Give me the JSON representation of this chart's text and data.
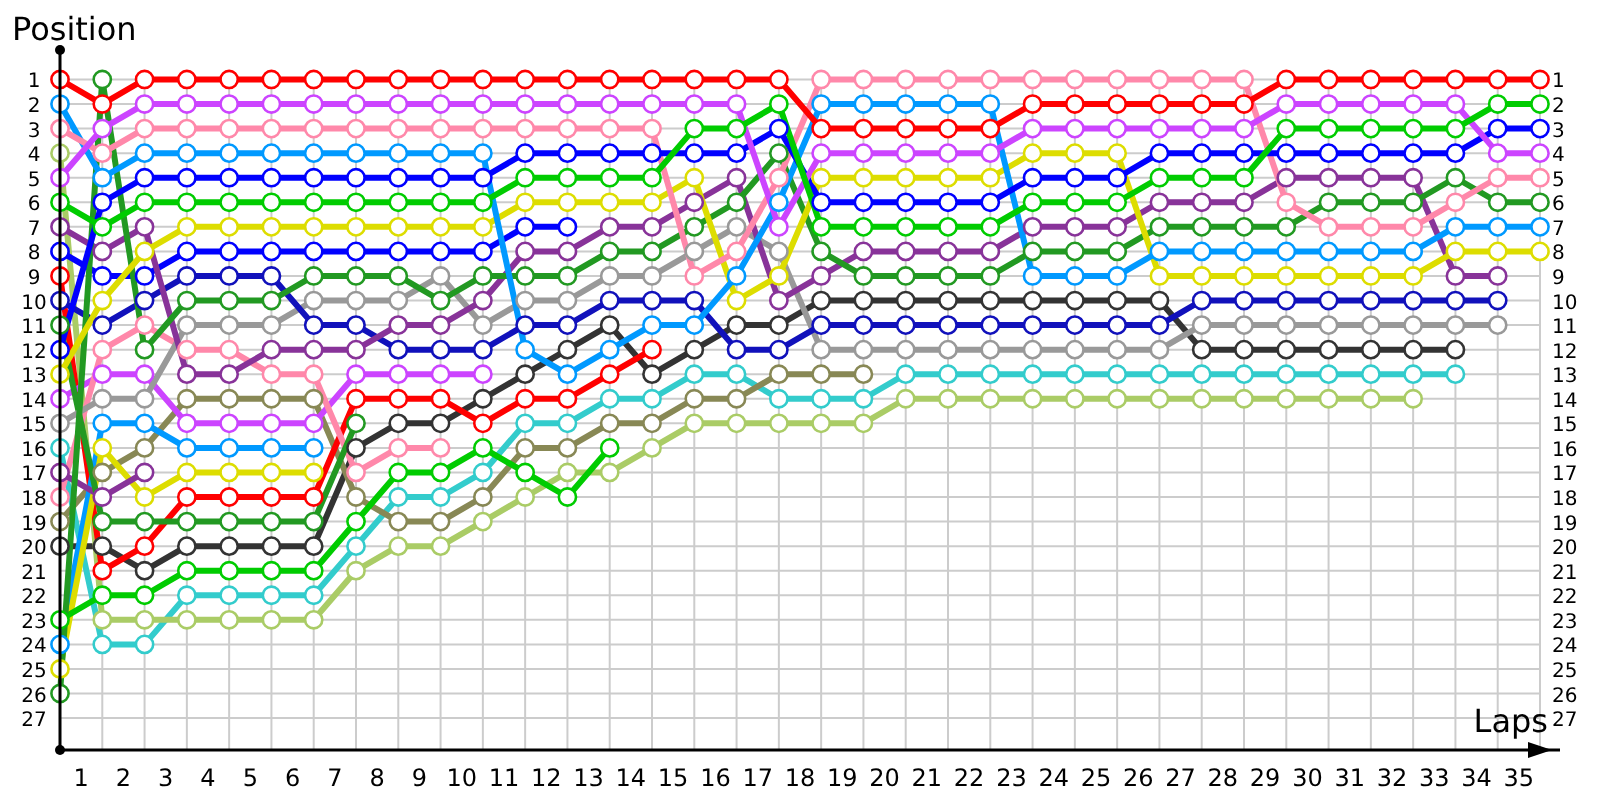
{
  "chart_data": {
    "type": "line",
    "ylabel": "Position",
    "xlabel": "Laps",
    "marker": "circle",
    "line_style": "solid",
    "grid": true,
    "x": [
      0,
      1,
      2,
      3,
      4,
      5,
      6,
      7,
      8,
      9,
      10,
      11,
      12,
      13,
      14,
      15,
      16,
      17,
      18,
      19,
      20,
      21,
      22,
      23,
      24,
      25,
      26,
      27,
      28,
      29,
      30,
      31,
      32,
      33,
      34,
      35
    ],
    "xlim": [
      0,
      35
    ],
    "xticks": [
      {
        "value": 0,
        "label": null
      },
      {
        "value": 1,
        "label": null
      },
      {
        "value": 2,
        "label": null
      },
      {
        "value": 3,
        "label": null
      },
      {
        "value": 4,
        "label": null
      },
      {
        "value": 5,
        "label": null
      },
      {
        "value": 6,
        "label": null
      },
      {
        "value": 7,
        "label": null
      },
      {
        "value": 8,
        "label": null
      },
      {
        "value": 9,
        "label": null
      },
      {
        "value": 10,
        "label": null
      },
      {
        "value": 11,
        "label": null
      },
      {
        "value": 12,
        "label": null
      },
      {
        "value": 13,
        "label": null
      },
      {
        "value": 14,
        "label": null
      },
      {
        "value": 15,
        "label": null
      },
      {
        "value": 16,
        "label": null
      },
      {
        "value": 17,
        "label": null
      },
      {
        "value": 18,
        "label": null
      },
      {
        "value": 19,
        "label": null
      },
      {
        "value": 20,
        "label": null
      },
      {
        "value": 21,
        "label": null
      },
      {
        "value": 22,
        "label": null
      },
      {
        "value": 23,
        "label": null
      },
      {
        "value": 24,
        "label": null
      },
      {
        "value": 25,
        "label": null
      },
      {
        "value": 26,
        "label": null
      },
      {
        "value": 27,
        "label": null
      },
      {
        "value": 28,
        "label": null
      },
      {
        "value": 29,
        "label": null
      },
      {
        "value": 30,
        "label": null
      },
      {
        "value": 31,
        "label": null
      },
      {
        "value": 32,
        "label": null
      },
      {
        "value": 33,
        "label": null
      },
      {
        "value": 34,
        "label": null
      },
      {
        "value": 35,
        "label": null
      },
      {
        "value": 0.5,
        "label": "1"
      },
      {
        "value": 1.5,
        "label": "2"
      },
      {
        "value": 2.5,
        "label": "3"
      },
      {
        "value": 3.5,
        "label": "4"
      },
      {
        "value": 4.5,
        "label": "5"
      },
      {
        "value": 5.5,
        "label": "6"
      },
      {
        "value": 6.5,
        "label": "7"
      },
      {
        "value": 7.5,
        "label": "8"
      },
      {
        "value": 8.5,
        "label": "9"
      },
      {
        "value": 9.5,
        "label": "10"
      },
      {
        "value": 10.5,
        "label": "11"
      },
      {
        "value": 11.5,
        "label": "12"
      },
      {
        "value": 12.5,
        "label": "13"
      },
      {
        "value": 13.5,
        "label": "14"
      },
      {
        "value": 14.5,
        "label": "15"
      },
      {
        "value": 15.5,
        "label": "16"
      },
      {
        "value": 16.5,
        "label": "17"
      },
      {
        "value": 17.5,
        "label": "18"
      },
      {
        "value": 18.5,
        "label": "19"
      },
      {
        "value": 19.5,
        "label": "20"
      },
      {
        "value": 20.5,
        "label": "21"
      },
      {
        "value": 21.5,
        "label": "22"
      },
      {
        "value": 22.5,
        "label": "23"
      },
      {
        "value": 23.5,
        "label": "24"
      },
      {
        "value": 24.5,
        "label": "25"
      },
      {
        "value": 25.5,
        "label": "26"
      },
      {
        "value": 26.5,
        "label": "27"
      },
      {
        "value": 27.5,
        "label": "28"
      },
      {
        "value": 28.5,
        "label": "29"
      },
      {
        "value": 29.5,
        "label": "30"
      },
      {
        "value": 30.5,
        "label": "31"
      },
      {
        "value": 31.5,
        "label": "32"
      },
      {
        "value": 32.5,
        "label": "33"
      },
      {
        "value": 33.5,
        "label": "34"
      },
      {
        "value": 34.5,
        "label": "35"
      }
    ],
    "ylim": [
      28.3,
      -0.2
    ],
    "yticks": [
      1,
      2,
      3,
      4,
      5,
      6,
      7,
      8,
      9,
      10,
      11,
      12,
      13,
      14,
      15,
      16,
      17,
      18,
      19,
      20,
      21,
      22,
      23,
      24,
      25,
      26,
      27
    ],
    "y2lim": [
      28.3,
      -0.2
    ],
    "y2ticks": [
      1,
      2,
      3,
      4,
      5,
      6,
      7,
      8,
      9,
      10,
      11,
      12,
      13,
      14,
      15,
      16,
      17,
      18,
      19,
      20,
      21,
      22,
      23,
      24,
      25,
      26,
      27
    ],
    "series": [
      {
        "color": "#333333",
        "values": [
          20,
          20,
          21,
          20,
          20,
          20,
          20,
          16,
          15,
          15,
          14,
          13,
          12,
          11,
          13,
          12,
          11,
          11,
          10,
          10,
          10,
          10,
          10,
          10,
          10,
          10,
          10,
          12,
          12,
          12,
          12,
          12,
          12,
          12,
          null,
          null
        ]
      },
      {
        "color": "#33cccc",
        "values": [
          16,
          24,
          24,
          22,
          22,
          22,
          22,
          20,
          18,
          18,
          17,
          15,
          15,
          14,
          14,
          13,
          13,
          14,
          14,
          14,
          13,
          13,
          13,
          13,
          13,
          13,
          13,
          13,
          13,
          13,
          13,
          13,
          13,
          13,
          null,
          null
        ]
      },
      {
        "color": "#aacc66",
        "values": [
          4,
          23,
          23,
          23,
          23,
          23,
          23,
          21,
          20,
          20,
          19,
          18,
          17,
          17,
          16,
          15,
          15,
          15,
          15,
          15,
          14,
          14,
          14,
          14,
          14,
          14,
          14,
          14,
          14,
          14,
          14,
          14,
          14,
          null,
          null,
          null
        ]
      },
      {
        "color": "#888855",
        "values": [
          19,
          17,
          16,
          14,
          14,
          14,
          14,
          18,
          19,
          19,
          18,
          16,
          16,
          15,
          15,
          14,
          14,
          13,
          13,
          13,
          null,
          null,
          null,
          null,
          null,
          null,
          null,
          null,
          null,
          null,
          null,
          null,
          null,
          null,
          null,
          null
        ]
      },
      {
        "color": "#ff0000",
        "values": [
          9,
          21,
          20,
          18,
          18,
          18,
          18,
          14,
          14,
          14,
          15,
          14,
          14,
          13,
          12,
          null,
          null,
          null,
          null,
          null,
          null,
          null,
          null,
          null,
          null,
          null,
          null,
          null,
          null,
          null,
          null,
          null,
          null,
          null,
          null,
          null
        ]
      },
      {
        "color": "#cc44ff",
        "values": [
          14,
          13,
          13,
          15,
          15,
          15,
          15,
          13,
          13,
          13,
          13,
          null,
          null,
          null,
          null,
          null,
          null,
          null,
          null,
          null,
          null,
          null,
          null,
          null,
          null,
          null,
          null,
          null,
          null,
          null,
          null,
          null,
          null,
          null,
          null,
          null
        ]
      },
      {
        "color": "#0099ff",
        "values": [
          24,
          15,
          15,
          16,
          16,
          16,
          16,
          null,
          null,
          null,
          null,
          null,
          null,
          null,
          null,
          null,
          null,
          null,
          null,
          null,
          null,
          null,
          null,
          null,
          null,
          null,
          null,
          null,
          null,
          null,
          null,
          null,
          null,
          null,
          null,
          null
        ]
      },
      {
        "color": "#dddd00",
        "values": [
          25,
          16,
          18,
          17,
          17,
          17,
          17,
          null,
          null,
          null,
          null,
          null,
          null,
          null,
          null,
          null,
          null,
          null,
          null,
          null,
          null,
          null,
          null,
          null,
          null,
          null,
          null,
          null,
          null,
          null,
          null,
          null,
          null,
          null,
          null,
          null
        ]
      },
      {
        "color": "#ff88aa",
        "values": [
          18,
          12,
          11,
          12,
          12,
          13,
          13,
          17,
          16,
          16,
          null,
          null,
          null,
          null,
          null,
          null,
          null,
          null,
          null,
          null,
          null,
          null,
          null,
          null,
          null,
          null,
          null,
          null,
          null,
          null,
          null,
          null,
          null,
          null,
          null,
          null
        ]
      },
      {
        "color": "#883399",
        "values": [
          17,
          18,
          17,
          null,
          null,
          null,
          null,
          null,
          null,
          null,
          null,
          null,
          null,
          null,
          null,
          null,
          null,
          null,
          null,
          null,
          null,
          null,
          null,
          null,
          null,
          null,
          null,
          null,
          null,
          null,
          null,
          null,
          null,
          null,
          null,
          null
        ]
      },
      {
        "color": "#229922",
        "values": [
          11,
          19,
          19,
          19,
          19,
          19,
          19,
          15,
          null,
          null,
          null,
          null,
          null,
          null,
          null,
          null,
          null,
          null,
          null,
          null,
          null,
          null,
          null,
          null,
          null,
          null,
          null,
          null,
          null,
          null,
          null,
          null,
          null,
          null,
          null,
          null
        ]
      },
      {
        "color": "#00cc00",
        "values": [
          23,
          22,
          22,
          21,
          21,
          21,
          21,
          19,
          17,
          17,
          16,
          17,
          18,
          16,
          null,
          null,
          null,
          null,
          null,
          null,
          null,
          null,
          null,
          null,
          null,
          null,
          null,
          null,
          null,
          null,
          null,
          null,
          null,
          null,
          null,
          null
        ]
      },
      {
        "color": "#0000ff",
        "values": [
          8,
          9,
          9,
          8,
          8,
          8,
          8,
          8,
          8,
          8,
          8,
          7,
          7,
          null,
          null,
          null,
          null,
          null,
          null,
          null,
          null,
          null,
          null,
          null,
          null,
          null,
          null,
          null,
          null,
          null,
          null,
          null,
          null,
          null,
          null,
          null
        ]
      },
      {
        "color": "#999999",
        "values": [
          15,
          14,
          14,
          11,
          11,
          11,
          10,
          10,
          10,
          9,
          11,
          10,
          10,
          9,
          9,
          8,
          7,
          8,
          12,
          12,
          12,
          12,
          12,
          12,
          12,
          12,
          12,
          11,
          11,
          11,
          11,
          11,
          11,
          11,
          11,
          null
        ]
      },
      {
        "color": "#1111bb",
        "values": [
          10,
          11,
          10,
          9,
          9,
          9,
          11,
          11,
          12,
          12,
          12,
          11,
          11,
          10,
          10,
          10,
          12,
          12,
          11,
          11,
          11,
          11,
          11,
          11,
          11,
          11,
          11,
          10,
          10,
          10,
          10,
          10,
          10,
          10,
          10,
          null
        ]
      },
      {
        "color": "#883399",
        "values": [
          7,
          8,
          7,
          13,
          13,
          12,
          12,
          12,
          11,
          11,
          10,
          8,
          8,
          7,
          7,
          6,
          5,
          10,
          9,
          8,
          8,
          8,
          8,
          7,
          7,
          7,
          6,
          6,
          6,
          5,
          5,
          5,
          5,
          9,
          9,
          null
        ]
      },
      {
        "color": "#229922",
        "values": [
          26,
          1,
          12,
          10,
          10,
          10,
          9,
          9,
          9,
          10,
          9,
          9,
          9,
          8,
          8,
          7,
          6,
          4,
          8,
          9,
          9,
          9,
          9,
          8,
          8,
          8,
          7,
          7,
          7,
          7,
          6,
          6,
          6,
          5,
          6,
          6
        ]
      },
      {
        "color": "#dddd00",
        "values": [
          13,
          10,
          8,
          7,
          7,
          7,
          7,
          7,
          7,
          7,
          7,
          6,
          6,
          6,
          6,
          5,
          10,
          9,
          5,
          5,
          5,
          5,
          5,
          4,
          4,
          4,
          9,
          9,
          9,
          9,
          9,
          9,
          9,
          8,
          8,
          8
        ]
      },
      {
        "color": "#0099ff",
        "values": [
          2,
          5,
          4,
          4,
          4,
          4,
          4,
          4,
          4,
          4,
          4,
          12,
          13,
          12,
          11,
          11,
          9,
          6,
          2,
          2,
          2,
          2,
          2,
          9,
          9,
          9,
          8,
          8,
          8,
          8,
          8,
          8,
          8,
          7,
          7,
          7
        ]
      },
      {
        "color": "#ff88aa",
        "values": [
          3,
          4,
          3,
          3,
          3,
          3,
          3,
          3,
          3,
          3,
          3,
          3,
          3,
          3,
          3,
          9,
          8,
          5,
          1,
          1,
          1,
          1,
          1,
          1,
          1,
          1,
          1,
          1,
          1,
          6,
          7,
          7,
          7,
          6,
          5,
          5
        ]
      },
      {
        "color": "#0000ff",
        "values": [
          12,
          6,
          5,
          5,
          5,
          5,
          5,
          5,
          5,
          5,
          5,
          4,
          4,
          4,
          4,
          4,
          4,
          3,
          6,
          6,
          6,
          6,
          6,
          5,
          5,
          5,
          4,
          4,
          4,
          4,
          4,
          4,
          4,
          4,
          3,
          3
        ]
      },
      {
        "color": "#cc44ff",
        "values": [
          5,
          3,
          2,
          2,
          2,
          2,
          2,
          2,
          2,
          2,
          2,
          2,
          2,
          2,
          2,
          2,
          2,
          7,
          4,
          4,
          4,
          4,
          4,
          3,
          3,
          3,
          3,
          3,
          3,
          2,
          2,
          2,
          2,
          2,
          4,
          4
        ]
      },
      {
        "color": "#00cc00",
        "values": [
          6,
          7,
          6,
          6,
          6,
          6,
          6,
          6,
          6,
          6,
          6,
          5,
          5,
          5,
          5,
          3,
          3,
          2,
          7,
          7,
          7,
          7,
          7,
          6,
          6,
          6,
          5,
          5,
          5,
          3,
          3,
          3,
          3,
          3,
          2,
          2
        ]
      },
      {
        "color": "#ff0000",
        "values": [
          1,
          2,
          1,
          1,
          1,
          1,
          1,
          1,
          1,
          1,
          1,
          1,
          1,
          1,
          1,
          1,
          1,
          1,
          3,
          3,
          3,
          3,
          3,
          2,
          2,
          2,
          2,
          2,
          2,
          1,
          1,
          1,
          1,
          1,
          1,
          1
        ]
      }
    ]
  }
}
